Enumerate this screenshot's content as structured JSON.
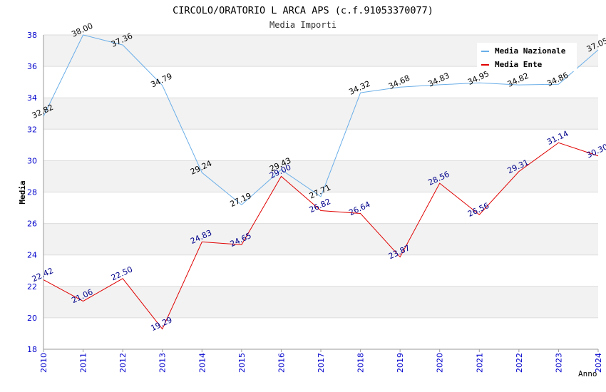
{
  "chart_data": {
    "type": "line",
    "title": "CIRCOLO/ORATORIO L ARCA APS (c.f.91053370077)",
    "subtitle": "Media Importi",
    "xlabel": "Anno",
    "ylabel": "Media",
    "ylim": [
      18,
      38
    ],
    "yticks": [
      "18",
      "20",
      "22",
      "24",
      "26",
      "28",
      "30",
      "32",
      "34",
      "36",
      "38"
    ],
    "categories": [
      "2010",
      "2011",
      "2012",
      "2013",
      "2014",
      "2015",
      "2016",
      "2017",
      "2018",
      "2019",
      "2020",
      "2021",
      "2022",
      "2023",
      "2024"
    ],
    "series": [
      {
        "name": "Media Nazionale",
        "color": "#6aaee8",
        "label_color": "#000000",
        "values": [
          32.82,
          38.0,
          37.36,
          34.79,
          29.24,
          27.19,
          29.43,
          27.71,
          34.32,
          34.68,
          34.83,
          34.95,
          34.82,
          34.86,
          37.05
        ],
        "labels": [
          "32.82",
          "38.00",
          "37.36",
          "34.79",
          "29.24",
          "27.19",
          "29.43",
          "27.71",
          "34.32",
          "34.68",
          "34.83",
          "34.95",
          "34.82",
          "34.86",
          "37.05"
        ]
      },
      {
        "name": "Media Ente",
        "color": "#e00000",
        "label_color": "#00008b",
        "values": [
          22.42,
          21.06,
          22.5,
          19.29,
          24.83,
          24.65,
          29.0,
          26.82,
          26.64,
          23.87,
          28.56,
          26.56,
          29.31,
          31.14,
          30.3
        ],
        "labels": [
          "22.42",
          "21.06",
          "22.50",
          "19.29",
          "24.83",
          "24.65",
          "29.00",
          "26.82",
          "26.64",
          "23.87",
          "28.56",
          "26.56",
          "29.31",
          "31.14",
          "30.30"
        ]
      }
    ],
    "legend_position": "top-right",
    "grid": true,
    "axis_label_color": "#0000cc",
    "band_color": "#f2f2f2"
  }
}
